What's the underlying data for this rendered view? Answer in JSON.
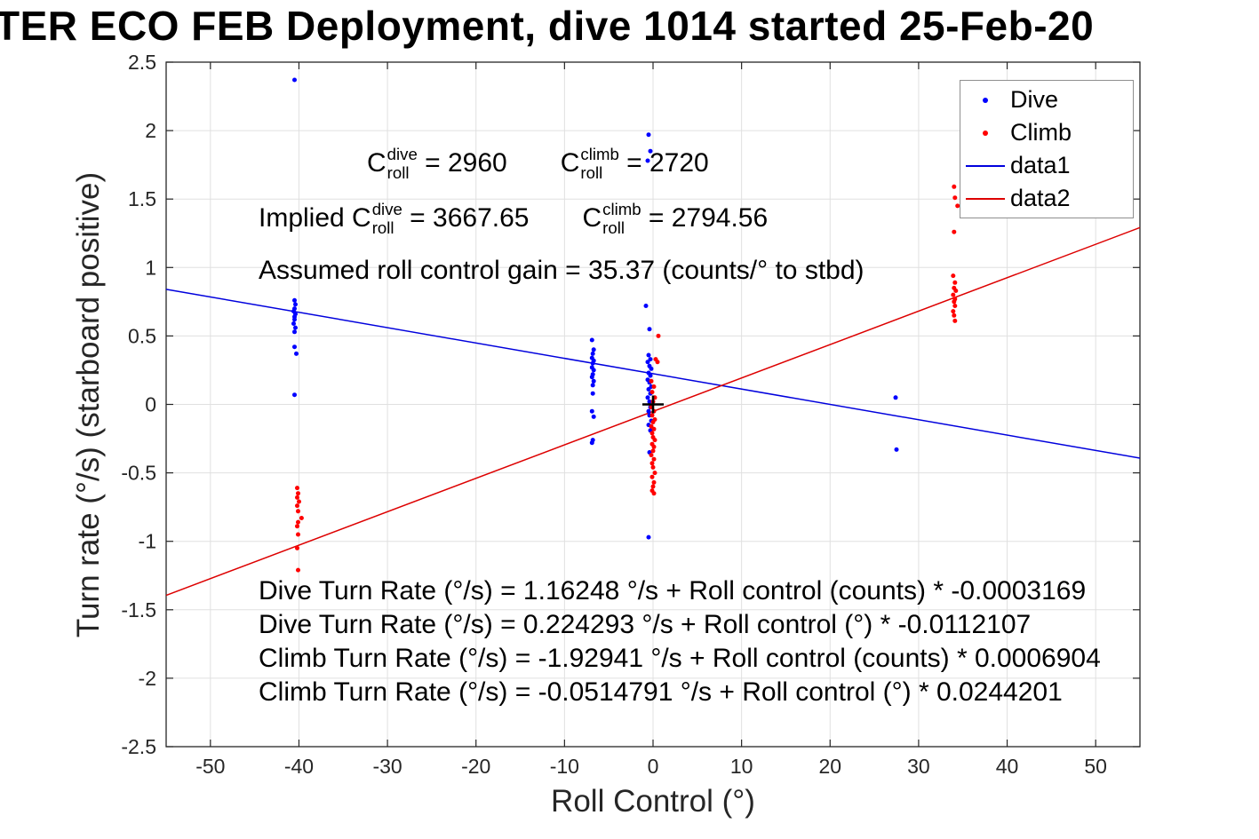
{
  "chart_data": {
    "type": "scatter",
    "title": "TER ECO FEB Deployment, dive 1014 started 25-Feb-20",
    "xlabel": "Roll Control (°)",
    "ylabel": "Turn rate (°/s) (starboard positive)",
    "xlim": [
      -55,
      55
    ],
    "ylim": [
      -2.5,
      2.5
    ],
    "xticks": [
      -50,
      -40,
      -30,
      -20,
      -10,
      0,
      10,
      20,
      30,
      40,
      50
    ],
    "yticks": [
      -2.5,
      -2,
      -1.5,
      -1,
      -0.5,
      0,
      0.5,
      1,
      1.5,
      2,
      2.5
    ],
    "grid": true,
    "colors": {
      "grid": "#e0e0e0",
      "axis": "#262626",
      "tick_label": "#262626",
      "dive": "#0000ff",
      "climb": "#ff0000",
      "data1_line": "#0000dd",
      "data2_line": "#dd0000",
      "origin_marker": "#000000"
    },
    "legend": {
      "position": "top-right",
      "entries": [
        {
          "label": "Dive",
          "marker": "dot",
          "color": "#0000ff"
        },
        {
          "label": "Climb",
          "marker": "dot",
          "color": "#ff0000"
        },
        {
          "label": "data1",
          "marker": "line",
          "color": "#0000dd"
        },
        {
          "label": "data2",
          "marker": "line",
          "color": "#dd0000"
        }
      ]
    },
    "series": [
      {
        "name": "Dive",
        "type": "scatter",
        "color": "#0000ff",
        "points": [
          [
            -40.5,
            2.37
          ],
          [
            -40.5,
            0.76
          ],
          [
            -40.4,
            0.73
          ],
          [
            -40.5,
            0.7
          ],
          [
            -40.6,
            0.68
          ],
          [
            -40.4,
            0.66
          ],
          [
            -40.5,
            0.64
          ],
          [
            -40.5,
            0.62
          ],
          [
            -40.6,
            0.59
          ],
          [
            -40.4,
            0.56
          ],
          [
            -40.5,
            0.53
          ],
          [
            -40.5,
            0.42
          ],
          [
            -40.3,
            0.37
          ],
          [
            -40.5,
            0.07
          ],
          [
            -6.9,
            0.47
          ],
          [
            -6.7,
            0.4
          ],
          [
            -6.8,
            0.37
          ],
          [
            -6.9,
            0.34
          ],
          [
            -6.7,
            0.32
          ],
          [
            -6.8,
            0.3
          ],
          [
            -6.9,
            0.27
          ],
          [
            -6.7,
            0.25
          ],
          [
            -6.8,
            0.22
          ],
          [
            -6.9,
            0.2
          ],
          [
            -6.7,
            0.17
          ],
          [
            -6.8,
            0.14
          ],
          [
            -6.8,
            0.08
          ],
          [
            -6.9,
            -0.05
          ],
          [
            -6.7,
            -0.09
          ],
          [
            -6.8,
            -0.26
          ],
          [
            -6.9,
            -0.28
          ],
          [
            -0.5,
            1.97
          ],
          [
            -0.3,
            1.85
          ],
          [
            -0.6,
            1.78
          ],
          [
            -0.8,
            0.72
          ],
          [
            -0.4,
            0.55
          ],
          [
            -0.5,
            0.36
          ],
          [
            -0.3,
            0.33
          ],
          [
            -0.6,
            0.31
          ],
          [
            -0.4,
            0.28
          ],
          [
            -0.2,
            0.26
          ],
          [
            -0.5,
            0.23
          ],
          [
            -0.3,
            0.21
          ],
          [
            -0.6,
            0.18
          ],
          [
            -0.4,
            0.16
          ],
          [
            -0.2,
            0.13
          ],
          [
            -0.5,
            0.11
          ],
          [
            -0.3,
            0.08
          ],
          [
            -0.6,
            0.05
          ],
          [
            -0.4,
            0.02
          ],
          [
            -0.3,
            -0.02
          ],
          [
            -0.5,
            -0.05
          ],
          [
            -0.4,
            -0.08
          ],
          [
            -0.2,
            -0.12
          ],
          [
            -0.5,
            -0.15
          ],
          [
            -0.3,
            -0.19
          ],
          [
            -0.4,
            -0.35
          ],
          [
            -0.5,
            -0.97
          ],
          [
            27.4,
            0.05
          ],
          [
            27.5,
            -0.33
          ]
        ]
      },
      {
        "name": "Climb",
        "type": "scatter",
        "color": "#ff0000",
        "points": [
          [
            -40.2,
            -0.61
          ],
          [
            -40.1,
            -0.65
          ],
          [
            -40.2,
            -0.68
          ],
          [
            -40.0,
            -0.71
          ],
          [
            -40.2,
            -0.74
          ],
          [
            -40.1,
            -0.78
          ],
          [
            -39.7,
            -0.83
          ],
          [
            -40.1,
            -0.86
          ],
          [
            -40.2,
            -0.89
          ],
          [
            -40.1,
            -0.95
          ],
          [
            -40.2,
            -1.05
          ],
          [
            -40.1,
            -1.21
          ],
          [
            0.6,
            0.5
          ],
          [
            0.3,
            0.33
          ],
          [
            0.5,
            0.31
          ],
          [
            -0.2,
            0.17
          ],
          [
            0.1,
            0.13
          ],
          [
            -0.1,
            0.09
          ],
          [
            0.2,
            0.05
          ],
          [
            0.0,
            0.02
          ],
          [
            -0.2,
            -0.02
          ],
          [
            0.1,
            -0.05
          ],
          [
            -0.1,
            -0.08
          ],
          [
            0.2,
            -0.11
          ],
          [
            0.0,
            -0.13
          ],
          [
            -0.2,
            -0.16
          ],
          [
            0.1,
            -0.18
          ],
          [
            -0.1,
            -0.21
          ],
          [
            0.0,
            -0.24
          ],
          [
            0.2,
            -0.26
          ],
          [
            -0.1,
            -0.29
          ],
          [
            0.1,
            -0.31
          ],
          [
            0.0,
            -0.34
          ],
          [
            -0.2,
            -0.37
          ],
          [
            0.1,
            -0.4
          ],
          [
            -0.1,
            -0.43
          ],
          [
            0.0,
            -0.46
          ],
          [
            0.2,
            -0.5
          ],
          [
            -0.1,
            -0.53
          ],
          [
            0.1,
            -0.57
          ],
          [
            0.0,
            -0.6
          ],
          [
            -0.1,
            -0.63
          ],
          [
            0.1,
            -0.65
          ],
          [
            34.0,
            1.59
          ],
          [
            34.1,
            1.51
          ],
          [
            34.4,
            1.45
          ],
          [
            34.0,
            1.26
          ],
          [
            33.9,
            0.94
          ],
          [
            34.1,
            0.89
          ],
          [
            34.0,
            0.85
          ],
          [
            34.2,
            0.83
          ],
          [
            33.9,
            0.8
          ],
          [
            34.1,
            0.77
          ],
          [
            34.0,
            0.75
          ],
          [
            34.1,
            0.72
          ],
          [
            33.9,
            0.68
          ],
          [
            34.0,
            0.65
          ],
          [
            34.1,
            0.61
          ]
        ]
      },
      {
        "name": "data1",
        "type": "line",
        "color": "#0000dd",
        "intercept": 0.224293,
        "slope": -0.0112107
      },
      {
        "name": "data2",
        "type": "line",
        "color": "#dd0000",
        "intercept": -0.0514791,
        "slope": 0.0244201
      },
      {
        "name": "origin-marker",
        "type": "plus",
        "color": "#000000",
        "point": [
          0,
          0
        ]
      }
    ],
    "annotations": {
      "coeff": {
        "c1": {
          "base": "C",
          "sup": "dive",
          "sub": "roll",
          "value": " = 2960"
        },
        "c2": {
          "base": "C",
          "sup": "climb",
          "sub": "roll",
          "value": " = 2720"
        }
      },
      "implied": {
        "prefix": "Implied ",
        "c1": {
          "base": "C",
          "sup": "dive",
          "sub": "roll",
          "value": " = 3667.65"
        },
        "c2": {
          "base": "C",
          "sup": "climb",
          "sub": "roll",
          "value": " = 2794.56"
        }
      },
      "gain": "Assumed roll control gain = 35.37 (counts/° to stbd)",
      "equations": [
        "Dive Turn Rate (°/s) = 1.16248 °/s + Roll control (counts) * -0.0003169",
        "Dive Turn Rate (°/s) = 0.224293 °/s + Roll control (°) * -0.0112107",
        "Climb Turn Rate (°/s) = -1.92941 °/s + Roll control (counts) * 0.0006904",
        "Climb Turn Rate (°/s) = -0.0514791 °/s + Roll control (°) * 0.0244201"
      ]
    }
  }
}
